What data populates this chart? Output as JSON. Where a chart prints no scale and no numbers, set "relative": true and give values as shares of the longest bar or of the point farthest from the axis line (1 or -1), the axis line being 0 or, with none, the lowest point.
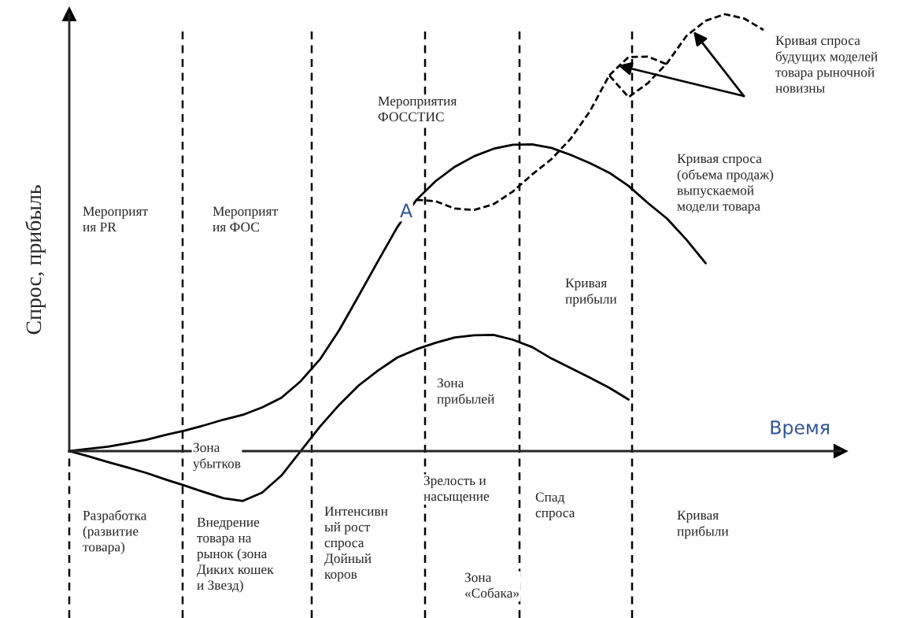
{
  "chart_data": {
    "type": "line",
    "relative": true,
    "ylabel": "Спрос, прибыль",
    "xlabel": "Время",
    "categories": [
      null,
      null,
      null,
      null,
      null,
      null,
      null,
      null,
      null,
      null,
      null,
      null,
      null,
      null,
      null,
      null,
      null,
      null,
      null,
      null,
      null,
      null,
      null,
      null,
      null,
      null,
      null,
      null,
      null,
      null,
      null,
      null,
      null,
      null,
      null,
      null,
      null,
      null,
      null,
      null,
      null
    ],
    "series": [
      {
        "color": "#000000",
        "line_style": "solid",
        "values": [
          0,
          0.005,
          0.01,
          0.018,
          0.026,
          0.037,
          0.047,
          0.059,
          0.072,
          0.083,
          0.1,
          0.122,
          0.16,
          0.21,
          0.277,
          0.355,
          0.434,
          0.512,
          0.575,
          0.618,
          0.651,
          0.675,
          0.692,
          0.701,
          0.702,
          0.694,
          0.678,
          0.659,
          0.637,
          0.607,
          0.568,
          0.532,
          0.484,
          0.43,
          null,
          null,
          null,
          null,
          null,
          null,
          null
        ]
      },
      {
        "color": "#000000",
        "line_style": "solid",
        "values": [
          0,
          -0.012,
          -0.025,
          -0.037,
          -0.05,
          -0.065,
          -0.079,
          -0.094,
          -0.108,
          -0.114,
          -0.095,
          -0.056,
          0.0,
          0.056,
          0.106,
          0.15,
          0.184,
          0.214,
          0.233,
          0.248,
          0.26,
          0.265,
          0.266,
          0.255,
          0.238,
          0.212,
          0.19,
          0.168,
          0.145,
          0.118,
          null,
          null,
          null,
          null,
          null,
          null,
          null,
          null,
          null,
          null,
          null
        ]
      },
      {
        "color": "#000000",
        "line_style": "dashed",
        "values": [
          null,
          null,
          null,
          null,
          null,
          null,
          null,
          null,
          null,
          null,
          null,
          null,
          null,
          null,
          null,
          null,
          null,
          null,
          0.575,
          0.572,
          0.555,
          0.552,
          0.565,
          0.594,
          0.633,
          0.668,
          0.715,
          0.778,
          0.86,
          0.81,
          0.842,
          0.888,
          0.95,
          0.985,
          1.0,
          0.99,
          0.964,
          null,
          null,
          null,
          null
        ]
      },
      {
        "color": "#000000",
        "line_style": "dashed",
        "values": [
          null,
          null,
          null,
          null,
          null,
          null,
          null,
          null,
          null,
          null,
          null,
          null,
          null,
          null,
          null,
          null,
          null,
          null,
          null,
          null,
          null,
          null,
          null,
          null,
          null,
          null,
          null,
          null,
          0.86,
          0.902,
          0.903,
          0.885,
          null,
          null,
          null,
          null,
          null,
          null,
          null,
          null,
          null
        ]
      }
    ],
    "annotations": [
      "Мероприят\nия PR",
      "Мероприят\nия ФОС",
      "Мероприятия\nФОССТИС",
      "Кривая спроса\nбудущих моделей\nтовара рыночной\nновизны",
      "Кривая спроса\n(объема продаж)\nвыпускаемой\nмодели товара",
      "Кривая\nприбыли",
      "Зона\nприбылей",
      "Зона\nубытков",
      "Разработка\n(развитие\nтовара)",
      "Внедрение\nтовара на\nрынок (зона\nДиких кошек\nи Звезд)",
      "Интенсивн\nый рост\nспроса\nДойный\nкоров",
      "Зрелость и\nнасыщение",
      "Спад\nспроса",
      "Кривая\nприбыли",
      "Зона\n«Собака»",
      "A"
    ]
  }
}
